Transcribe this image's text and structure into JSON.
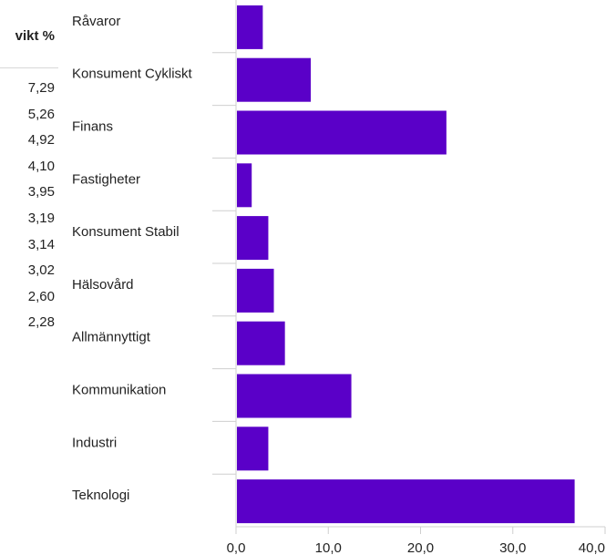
{
  "weights_table": {
    "header": "vikt %",
    "values": [
      "7,29",
      "5,26",
      "4,92",
      "4,10",
      "3,95",
      "3,19",
      "3,14",
      "3,02",
      "2,60",
      "2,28"
    ]
  },
  "chart_data": {
    "type": "bar",
    "orientation": "horizontal",
    "categories": [
      "Råvaror",
      "Konsument Cykliskt",
      "Finans",
      "Fastigheter",
      "Konsument Stabil",
      "Hälsovård",
      "Allmännyttigt",
      "Kommunikation",
      "Industri",
      "Teknologi"
    ],
    "values": [
      2.9,
      8.1,
      22.8,
      1.7,
      3.5,
      4.1,
      5.3,
      12.5,
      3.5,
      36.7
    ],
    "xlim": [
      0,
      40
    ],
    "xticks": [
      0,
      10,
      20,
      30,
      40
    ],
    "xtick_labels": [
      "0,0",
      "10,0",
      "20,0",
      "30,0",
      "40,0"
    ],
    "bar_color": "#5a00c8",
    "grid": false
  }
}
